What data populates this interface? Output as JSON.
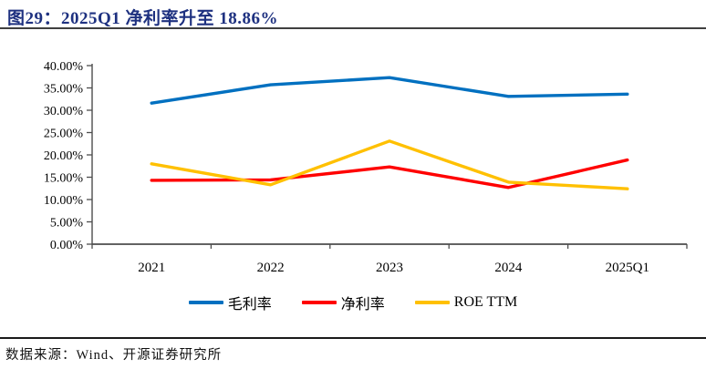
{
  "header": {
    "title": "图29：2025Q1 净利率升至 18.86%"
  },
  "footer": {
    "source": "数据来源：Wind、开源证券研究所"
  },
  "colors": {
    "title_navy": "#1E3180",
    "axis": "#4d4d4d",
    "tick_label": "#000000"
  },
  "chart_data": {
    "type": "line",
    "title": "图29：2025Q1 净利率升至 18.86%",
    "categories": [
      "2021",
      "2022",
      "2023",
      "2024",
      "2025Q1"
    ],
    "series": [
      {
        "name": "毛利率",
        "color": "#0070C0",
        "values": [
          31.6,
          35.7,
          37.3,
          33.1,
          33.6
        ]
      },
      {
        "name": "净利率",
        "color": "#FF0000",
        "values": [
          14.3,
          14.4,
          17.3,
          12.7,
          18.86
        ]
      },
      {
        "name": "ROE TTM",
        "color": "#FFC000",
        "values": [
          18.0,
          13.3,
          23.1,
          13.9,
          12.4
        ]
      }
    ],
    "ylim": [
      0,
      40
    ],
    "y_tick_step": 5,
    "y_tick_labels": [
      "0.00%",
      "5.00%",
      "10.00%",
      "15.00%",
      "20.00%",
      "25.00%",
      "30.00%",
      "35.00%",
      "40.00%"
    ],
    "grid": false,
    "legend_position": "bottom"
  }
}
